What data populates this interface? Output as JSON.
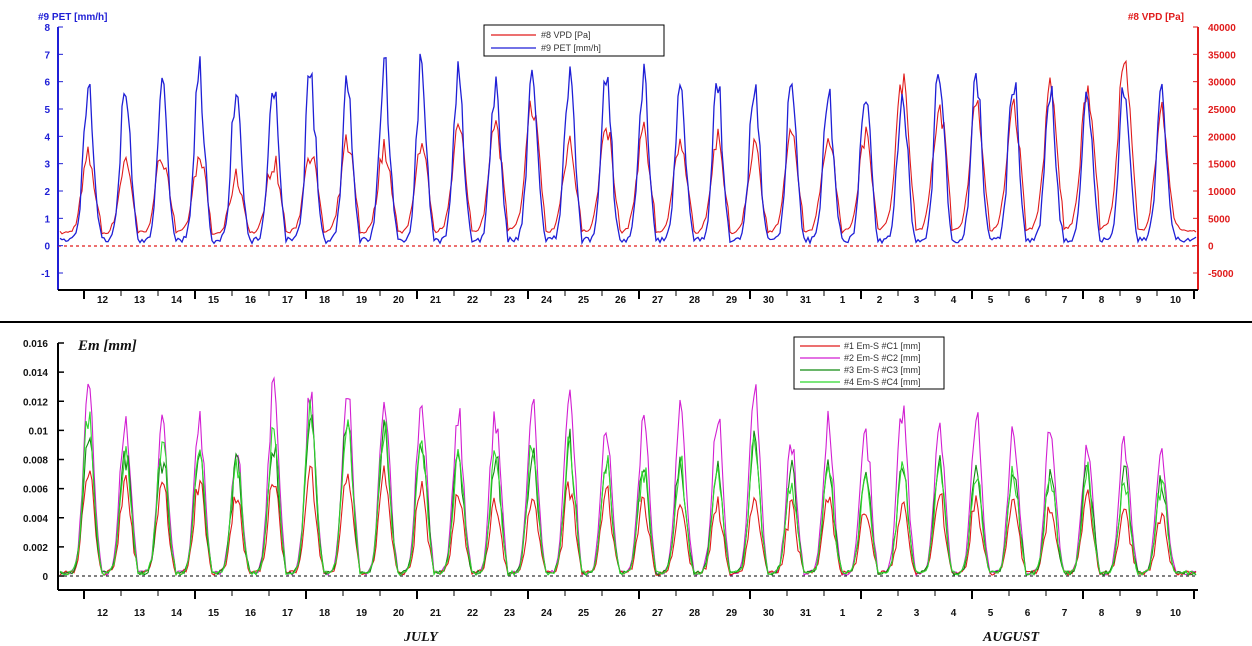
{
  "chart_data": [
    {
      "type": "line",
      "title": "",
      "left_axis": {
        "label": "#9  PET [mm/h]",
        "color": "#1f1fd6",
        "ylim": [
          -1,
          8
        ],
        "ticks": [
          "-1",
          "0",
          "1",
          "2",
          "3",
          "4",
          "5",
          "6",
          "7",
          "8"
        ]
      },
      "right_axis": {
        "label": "#8  VPD [Pa]",
        "color": "#e01b1b",
        "ylim": [
          -5000,
          40000
        ],
        "ticks": [
          "-5000",
          "0",
          "5000",
          "10000",
          "15000",
          "20000",
          "25000",
          "30000",
          "35000",
          "40000"
        ]
      },
      "x_ticks": [
        "12",
        "13",
        "14",
        "15",
        "16",
        "17",
        "18",
        "19",
        "20",
        "21",
        "22",
        "23",
        "24",
        "25",
        "26",
        "27",
        "28",
        "29",
        "30",
        "31",
        "1",
        "2",
        "3",
        "4",
        "5",
        "6",
        "7",
        "8",
        "9",
        "10"
      ],
      "legend": {
        "placement": "top-center",
        "entries": [
          "#8  VPD [Pa]",
          "#9  PET [mm/h]"
        ]
      },
      "series": [
        {
          "name": "#8  VPD [Pa]",
          "color": "#e01b1b",
          "axis": "right",
          "kind": "daily_peak",
          "values": [
            17000,
            16000,
            18000,
            17000,
            13000,
            17000,
            19000,
            20000,
            19000,
            19000,
            23000,
            24000,
            28000,
            20000,
            23000,
            22000,
            21000,
            20000,
            19000,
            21000,
            22000,
            22000,
            32000,
            28000,
            28000,
            28000,
            30000,
            31000,
            35000,
            25000
          ]
        },
        {
          "name": "#9  PET [mm/h]",
          "color": "#1f1fd6",
          "axis": "left",
          "kind": "daily_peak",
          "values": [
            6.3,
            6.0,
            6.1,
            6.6,
            6.0,
            6.5,
            6.6,
            6.6,
            7.1,
            6.9,
            6.4,
            6.4,
            6.6,
            6.8,
            6.8,
            6.4,
            6.4,
            6.2,
            6.3,
            6.1,
            6.2,
            6.1,
            6.3,
            7.2,
            6.8,
            6.5,
            6.4,
            6.4,
            6.6,
            6.2
          ]
        }
      ],
      "zero_line": 0
    },
    {
      "type": "line",
      "title": "Em [mm]",
      "y_axis": {
        "ylim": [
          0,
          0.016
        ],
        "ticks": [
          "0",
          "0.002",
          "0.004",
          "0.006",
          "0.008",
          "0.01",
          "0.012",
          "0.014",
          "0.016"
        ]
      },
      "x_ticks": [
        "12",
        "13",
        "14",
        "15",
        "16",
        "17",
        "18",
        "19",
        "20",
        "21",
        "22",
        "23",
        "24",
        "25",
        "26",
        "27",
        "28",
        "29",
        "30",
        "31",
        "1",
        "2",
        "3",
        "4",
        "5",
        "6",
        "7",
        "8",
        "9",
        "10"
      ],
      "month_labels": [
        "JULY",
        "AUGUST"
      ],
      "legend": {
        "placement": "top-right",
        "entries": [
          "#1  Em-S #C1 [mm]",
          "#2  Em-S #C2 [mm]",
          "#3  Em-S #C3 [mm]",
          "#4  Em-S #C4 [mm]"
        ]
      },
      "series": [
        {
          "name": "#1  Em-S #C1 [mm]",
          "color": "#e01b1b",
          "kind": "daily_peak",
          "values": [
            0.008,
            0.007,
            0.007,
            0.007,
            0.006,
            0.0072,
            0.008,
            0.008,
            0.0078,
            0.0068,
            0.0062,
            0.0058,
            0.006,
            0.0068,
            0.0058,
            0.0055,
            0.0052,
            0.0055,
            0.006,
            0.005,
            0.0058,
            0.005,
            0.0052,
            0.0058,
            0.0055,
            0.0055,
            0.0055,
            0.0055,
            0.005,
            0.0045
          ]
        },
        {
          "name": "#2  Em-S #C2 [mm]",
          "color": "#d21fd2",
          "kind": "daily_peak",
          "values": [
            0.0135,
            0.0115,
            0.011,
            0.011,
            0.0095,
            0.014,
            0.0135,
            0.014,
            0.013,
            0.0125,
            0.012,
            0.012,
            0.0125,
            0.0135,
            0.011,
            0.0115,
            0.012,
            0.0115,
            0.014,
            0.0095,
            0.011,
            0.011,
            0.0125,
            0.011,
            0.0115,
            0.011,
            0.0105,
            0.0095,
            0.01,
            0.009
          ]
        },
        {
          "name": "#3  Em-S #C3 [mm]",
          "color": "#128a12",
          "kind": "daily_peak",
          "values": [
            0.0105,
            0.0092,
            0.009,
            0.0092,
            0.0082,
            0.0098,
            0.012,
            0.0118,
            0.0108,
            0.0102,
            0.009,
            0.0088,
            0.009,
            0.0098,
            0.0084,
            0.0082,
            0.0082,
            0.008,
            0.0095,
            0.0075,
            0.008,
            0.0074,
            0.008,
            0.0082,
            0.008,
            0.008,
            0.0078,
            0.0078,
            0.0075,
            0.007
          ]
        },
        {
          "name": "#4  Em-S #C4 [mm]",
          "color": "#2fd62f",
          "kind": "daily_peak",
          "values": [
            0.0115,
            0.009,
            0.01,
            0.0095,
            0.0086,
            0.0105,
            0.0118,
            0.0115,
            0.011,
            0.01,
            0.009,
            0.0088,
            0.0095,
            0.01,
            0.0085,
            0.0082,
            0.0082,
            0.008,
            0.0098,
            0.0072,
            0.0078,
            0.0072,
            0.0078,
            0.008,
            0.0078,
            0.0078,
            0.0076,
            0.0075,
            0.007,
            0.0068
          ]
        }
      ],
      "zero_line": 0
    }
  ]
}
